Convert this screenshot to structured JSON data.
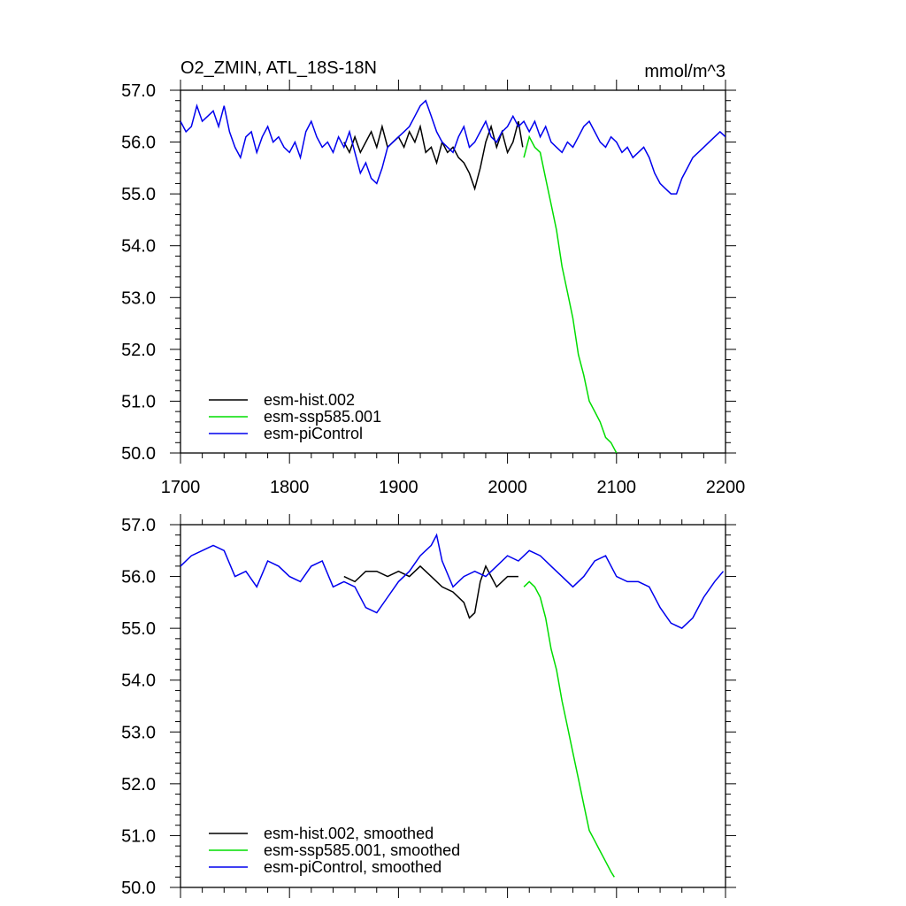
{
  "chart_data": [
    {
      "type": "line",
      "title": "O2_ZMIN, ATL_18S-18N",
      "units": "mmol/m^3",
      "xlim": [
        1700,
        2200
      ],
      "ylim": [
        50.0,
        57.0
      ],
      "xticks": [
        "1700",
        "1800",
        "1900",
        "2000",
        "2100",
        "2200"
      ],
      "yticks": [
        "50.0",
        "51.0",
        "52.0",
        "53.0",
        "54.0",
        "55.0",
        "56.0",
        "57.0"
      ],
      "legend_position": "bottom-left",
      "series": [
        {
          "name": "esm-hist.002",
          "color": "#000000",
          "x": [
            1850,
            1855,
            1860,
            1865,
            1870,
            1875,
            1880,
            1885,
            1890,
            1895,
            1900,
            1905,
            1910,
            1915,
            1920,
            1925,
            1930,
            1935,
            1940,
            1945,
            1950,
            1955,
            1960,
            1965,
            1970,
            1975,
            1980,
            1985,
            1990,
            1995,
            2000,
            2005,
            2010,
            2014
          ],
          "y": [
            56.0,
            55.8,
            56.1,
            55.8,
            56.0,
            56.2,
            55.9,
            56.3,
            55.9,
            56.0,
            56.1,
            55.9,
            56.2,
            56.0,
            56.3,
            55.8,
            55.9,
            55.6,
            56.0,
            55.8,
            55.9,
            55.7,
            55.6,
            55.4,
            55.1,
            55.5,
            56.0,
            56.3,
            55.9,
            56.2,
            55.8,
            56.0,
            56.4,
            55.9
          ]
        },
        {
          "name": "esm-ssp585.001",
          "color": "#00dd00",
          "x": [
            2015,
            2020,
            2025,
            2030,
            2035,
            2040,
            2045,
            2050,
            2055,
            2060,
            2065,
            2070,
            2075,
            2080,
            2085,
            2090,
            2095,
            2100
          ],
          "y": [
            55.7,
            56.1,
            55.9,
            55.8,
            55.3,
            54.8,
            54.3,
            53.6,
            53.1,
            52.6,
            51.9,
            51.5,
            51.0,
            50.8,
            50.6,
            50.3,
            50.2,
            50.0
          ]
        },
        {
          "name": "esm-piControl",
          "color": "#0000ee",
          "x": [
            1700,
            1705,
            1710,
            1715,
            1720,
            1725,
            1730,
            1735,
            1740,
            1745,
            1750,
            1755,
            1760,
            1765,
            1770,
            1775,
            1780,
            1785,
            1790,
            1795,
            1800,
            1805,
            1810,
            1815,
            1820,
            1825,
            1830,
            1835,
            1840,
            1845,
            1850,
            1855,
            1860,
            1865,
            1870,
            1875,
            1880,
            1885,
            1890,
            1895,
            1900,
            1905,
            1910,
            1915,
            1920,
            1925,
            1930,
            1935,
            1940,
            1945,
            1950,
            1955,
            1960,
            1965,
            1970,
            1975,
            1980,
            1985,
            1990,
            1995,
            2000,
            2005,
            2010,
            2015,
            2020,
            2025,
            2030,
            2035,
            2040,
            2045,
            2050,
            2055,
            2060,
            2065,
            2070,
            2075,
            2080,
            2085,
            2090,
            2095,
            2100,
            2105,
            2110,
            2115,
            2120,
            2125,
            2130,
            2135,
            2140,
            2145,
            2150,
            2155,
            2160,
            2165,
            2170,
            2175,
            2180,
            2185,
            2190,
            2195,
            2200
          ],
          "y": [
            56.4,
            56.2,
            56.3,
            56.7,
            56.4,
            56.5,
            56.6,
            56.3,
            56.7,
            56.2,
            55.9,
            55.7,
            56.1,
            56.2,
            55.8,
            56.1,
            56.3,
            56.0,
            56.1,
            55.9,
            55.8,
            56.0,
            55.7,
            56.2,
            56.4,
            56.1,
            55.9,
            56.0,
            55.8,
            56.1,
            55.9,
            56.2,
            55.8,
            55.4,
            55.6,
            55.3,
            55.2,
            55.5,
            55.9,
            56.0,
            56.1,
            56.2,
            56.3,
            56.5,
            56.7,
            56.8,
            56.5,
            56.2,
            56.0,
            55.9,
            55.8,
            56.1,
            56.3,
            55.9,
            56.0,
            56.2,
            56.4,
            56.1,
            56.0,
            56.2,
            56.3,
            56.5,
            56.3,
            56.4,
            56.2,
            56.4,
            56.1,
            56.3,
            56.0,
            55.9,
            55.8,
            56.0,
            55.9,
            56.1,
            56.3,
            56.4,
            56.2,
            56.0,
            55.9,
            56.1,
            56.0,
            55.8,
            55.9,
            55.7,
            55.8,
            55.9,
            55.7,
            55.4,
            55.2,
            55.1,
            55.0,
            55.0,
            55.3,
            55.5,
            55.7,
            55.8,
            55.9,
            56.0,
            56.1,
            56.2,
            56.1
          ]
        }
      ]
    },
    {
      "type": "line",
      "title": "",
      "xlim": [
        1700,
        2200
      ],
      "ylim": [
        50.0,
        57.0
      ],
      "yticks": [
        "50.0",
        "51.0",
        "52.0",
        "53.0",
        "54.0",
        "55.0",
        "56.0",
        "57.0"
      ],
      "legend_position": "bottom-left",
      "series": [
        {
          "name": "esm-hist.002, smoothed",
          "color": "#000000",
          "x": [
            1850,
            1860,
            1870,
            1880,
            1890,
            1900,
            1910,
            1920,
            1930,
            1940,
            1950,
            1960,
            1965,
            1970,
            1975,
            1980,
            1985,
            1990,
            2000,
            2010
          ],
          "y": [
            56.0,
            55.9,
            56.1,
            56.1,
            56.0,
            56.1,
            56.0,
            56.2,
            56.0,
            55.8,
            55.7,
            55.5,
            55.2,
            55.3,
            55.9,
            56.2,
            56.0,
            55.8,
            56.0,
            56.0
          ]
        },
        {
          "name": "esm-ssp585.001, smoothed",
          "color": "#00dd00",
          "x": [
            2015,
            2020,
            2025,
            2030,
            2035,
            2040,
            2045,
            2050,
            2055,
            2060,
            2065,
            2070,
            2075,
            2080,
            2085,
            2090,
            2095,
            2098
          ],
          "y": [
            55.8,
            55.9,
            55.8,
            55.6,
            55.2,
            54.6,
            54.2,
            53.6,
            53.1,
            52.6,
            52.1,
            51.6,
            51.1,
            50.9,
            50.7,
            50.5,
            50.3,
            50.2
          ]
        },
        {
          "name": "esm-piControl, smoothed",
          "color": "#0000ee",
          "x": [
            1700,
            1710,
            1720,
            1730,
            1740,
            1750,
            1760,
            1770,
            1780,
            1790,
            1800,
            1810,
            1820,
            1830,
            1840,
            1850,
            1860,
            1870,
            1880,
            1890,
            1900,
            1910,
            1920,
            1930,
            1935,
            1940,
            1950,
            1960,
            1970,
            1980,
            1990,
            2000,
            2010,
            2020,
            2030,
            2040,
            2050,
            2060,
            2070,
            2080,
            2090,
            2100,
            2110,
            2120,
            2130,
            2140,
            2150,
            2160,
            2170,
            2180,
            2190,
            2198
          ],
          "y": [
            56.2,
            56.4,
            56.5,
            56.6,
            56.5,
            56.0,
            56.1,
            55.8,
            56.3,
            56.2,
            56.0,
            55.9,
            56.2,
            56.3,
            55.8,
            55.9,
            55.8,
            55.4,
            55.3,
            55.6,
            55.9,
            56.1,
            56.4,
            56.6,
            56.8,
            56.3,
            55.8,
            56.0,
            56.1,
            56.0,
            56.2,
            56.4,
            56.3,
            56.5,
            56.4,
            56.2,
            56.0,
            55.8,
            56.0,
            56.3,
            56.4,
            56.0,
            55.9,
            55.9,
            55.8,
            55.4,
            55.1,
            55.0,
            55.2,
            55.6,
            55.9,
            56.1
          ]
        }
      ]
    }
  ]
}
